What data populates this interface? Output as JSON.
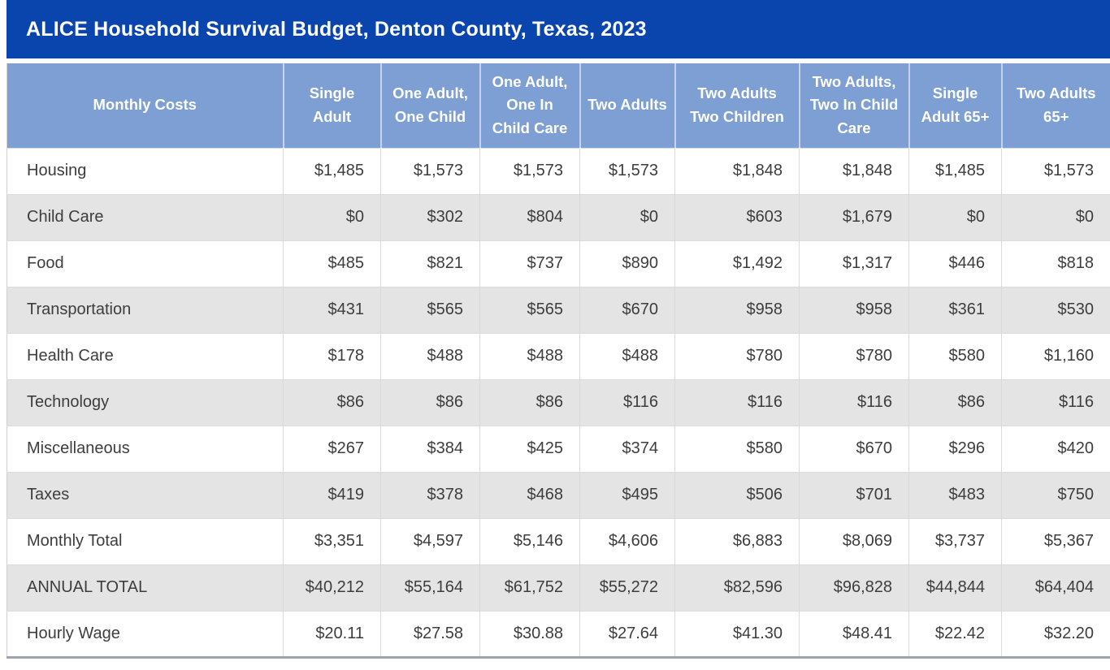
{
  "page": {
    "title": "ALICE Household Survival Budget, Denton County, Texas, 2023"
  },
  "colors": {
    "title_bar_bg": "#0a45ae",
    "header_bg": "#7d9fd4",
    "stripe_bg": "#e4e4e4",
    "text_light": "#ffffff",
    "text_dark": "#3d3d3d"
  },
  "chart_data": {
    "type": "table",
    "title": "ALICE Household Survival Budget, Denton County, Texas, 2023",
    "columns": [
      "Monthly Costs",
      "Single Adult",
      "One Adult, One Child",
      "One Adult, One In Child Care",
      "Two Adults",
      "Two Adults Two Children",
      "Two Adults, Two In Child Care",
      "Single Adult 65+",
      "Two Adults 65+"
    ],
    "rows": [
      {
        "label": "Housing",
        "values": [
          "$1,485",
          "$1,573",
          "$1,573",
          "$1,573",
          "$1,848",
          "$1,848",
          "$1,485",
          "$1,573"
        ]
      },
      {
        "label": "Child Care",
        "values": [
          "$0",
          "$302",
          "$804",
          "$0",
          "$603",
          "$1,679",
          "$0",
          "$0"
        ]
      },
      {
        "label": "Food",
        "values": [
          "$485",
          "$821",
          "$737",
          "$890",
          "$1,492",
          "$1,317",
          "$446",
          "$818"
        ]
      },
      {
        "label": "Transportation",
        "values": [
          "$431",
          "$565",
          "$565",
          "$670",
          "$958",
          "$958",
          "$361",
          "$530"
        ]
      },
      {
        "label": "Health Care",
        "values": [
          "$178",
          "$488",
          "$488",
          "$488",
          "$780",
          "$780",
          "$580",
          "$1,160"
        ]
      },
      {
        "label": "Technology",
        "values": [
          "$86",
          "$86",
          "$86",
          "$116",
          "$116",
          "$116",
          "$86",
          "$116"
        ]
      },
      {
        "label": "Miscellaneous",
        "values": [
          "$267",
          "$384",
          "$425",
          "$374",
          "$580",
          "$670",
          "$296",
          "$420"
        ]
      },
      {
        "label": "Taxes",
        "values": [
          "$419",
          "$378",
          "$468",
          "$495",
          "$506",
          "$701",
          "$483",
          "$750"
        ]
      },
      {
        "label": "Monthly Total",
        "values": [
          "$3,351",
          "$4,597",
          "$5,146",
          "$4,606",
          "$6,883",
          "$8,069",
          "$3,737",
          "$5,367"
        ]
      },
      {
        "label": "ANNUAL TOTAL",
        "values": [
          "$40,212",
          "$55,164",
          "$61,752",
          "$55,272",
          "$82,596",
          "$96,828",
          "$44,844",
          "$64,404"
        ]
      },
      {
        "label": "Hourly Wage",
        "values": [
          "$20.11",
          "$27.58",
          "$30.88",
          "$27.64",
          "$41.30",
          "$48.41",
          "$22.42",
          "$32.20"
        ]
      }
    ]
  }
}
